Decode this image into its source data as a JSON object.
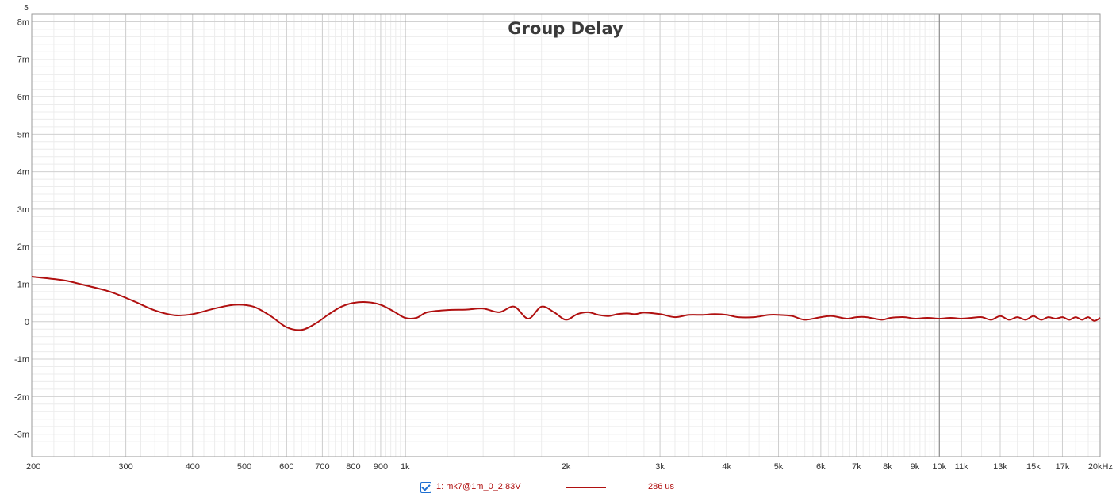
{
  "chart_data": {
    "type": "line",
    "title": "Group Delay",
    "ylabel": "s",
    "xscale": "log",
    "xlim": [
      200,
      20000
    ],
    "ylim": [
      -0.0036,
      0.0082
    ],
    "x_ticks": [
      {
        "value": 200,
        "label": "200"
      },
      {
        "value": 300,
        "label": "300"
      },
      {
        "value": 400,
        "label": "400"
      },
      {
        "value": 500,
        "label": "500"
      },
      {
        "value": 600,
        "label": "600"
      },
      {
        "value": 700,
        "label": "700"
      },
      {
        "value": 800,
        "label": "800"
      },
      {
        "value": 900,
        "label": "900"
      },
      {
        "value": 1000,
        "label": "1k"
      },
      {
        "value": 2000,
        "label": "2k"
      },
      {
        "value": 3000,
        "label": "3k"
      },
      {
        "value": 4000,
        "label": "4k"
      },
      {
        "value": 5000,
        "label": "5k"
      },
      {
        "value": 6000,
        "label": "6k"
      },
      {
        "value": 7000,
        "label": "7k"
      },
      {
        "value": 8000,
        "label": "8k"
      },
      {
        "value": 9000,
        "label": "9k"
      },
      {
        "value": 10000,
        "label": "10k"
      },
      {
        "value": 11000,
        "label": "11k"
      },
      {
        "value": 13000,
        "label": "13k"
      },
      {
        "value": 15000,
        "label": "15k"
      },
      {
        "value": 17000,
        "label": "17k"
      },
      {
        "value": 20000,
        "label": "20kHz"
      }
    ],
    "y_ticks": [
      {
        "value": 0.008,
        "label": "8m"
      },
      {
        "value": 0.007,
        "label": "7m"
      },
      {
        "value": 0.006,
        "label": "6m"
      },
      {
        "value": 0.005,
        "label": "5m"
      },
      {
        "value": 0.004,
        "label": "4m"
      },
      {
        "value": 0.003,
        "label": "3m"
      },
      {
        "value": 0.002,
        "label": "2m"
      },
      {
        "value": 0.001,
        "label": "1m"
      },
      {
        "value": 0,
        "label": "0"
      },
      {
        "value": -0.001,
        "label": "-1m"
      },
      {
        "value": -0.002,
        "label": "-2m"
      },
      {
        "value": -0.003,
        "label": "-3m"
      }
    ],
    "grid": true,
    "legend_position": "bottom-center",
    "series": [
      {
        "name": "1: mk7@1m_0_2.83V",
        "legend_value": "286 us",
        "color": "#b01010",
        "x": [
          200,
          230,
          250,
          280,
          310,
          340,
          370,
          400,
          440,
          480,
          520,
          560,
          600,
          640,
          680,
          720,
          760,
          800,
          850,
          900,
          950,
          1000,
          1050,
          1100,
          1200,
          1300,
          1400,
          1500,
          1600,
          1700,
          1800,
          1900,
          2000,
          2100,
          2200,
          2300,
          2400,
          2500,
          2600,
          2700,
          2800,
          3000,
          3200,
          3400,
          3600,
          3800,
          4000,
          4200,
          4500,
          4800,
          5000,
          5300,
          5600,
          6000,
          6300,
          6700,
          7000,
          7300,
          7800,
          8100,
          8600,
          9000,
          9500,
          10000,
          10500,
          11000,
          11500,
          12000,
          12500,
          13000,
          13500,
          14000,
          14500,
          15000,
          15500,
          16000,
          16500,
          17000,
          17500,
          18000,
          18500,
          19000,
          19500,
          20000
        ],
        "y": [
          0.0012,
          0.0011,
          0.00098,
          0.0008,
          0.00055,
          0.0003,
          0.00017,
          0.0002,
          0.00035,
          0.00045,
          0.0004,
          0.00015,
          -0.00015,
          -0.00022,
          -5e-05,
          0.0002,
          0.0004,
          0.0005,
          0.00052,
          0.00045,
          0.00028,
          0.0001,
          0.0001,
          0.00025,
          0.00031,
          0.00032,
          0.00035,
          0.00025,
          0.0004,
          8e-05,
          0.0004,
          0.00025,
          5e-05,
          0.0002,
          0.00025,
          0.00018,
          0.00015,
          0.0002,
          0.00022,
          0.0002,
          0.00024,
          0.0002,
          0.00012,
          0.00018,
          0.00018,
          0.0002,
          0.00018,
          0.00012,
          0.00012,
          0.00018,
          0.00018,
          0.00015,
          5e-05,
          0.00012,
          0.00015,
          8e-05,
          0.00012,
          0.00012,
          5e-05,
          0.0001,
          0.00012,
          8e-05,
          0.0001,
          8e-05,
          0.0001,
          8e-05,
          0.0001,
          0.00012,
          5e-05,
          0.00015,
          5e-05,
          0.00012,
          5e-05,
          0.00015,
          5e-05,
          0.00012,
          8e-05,
          0.00012,
          5e-05,
          0.00012,
          5e-05,
          0.00012,
          2e-05,
          0.0001
        ]
      }
    ]
  }
}
